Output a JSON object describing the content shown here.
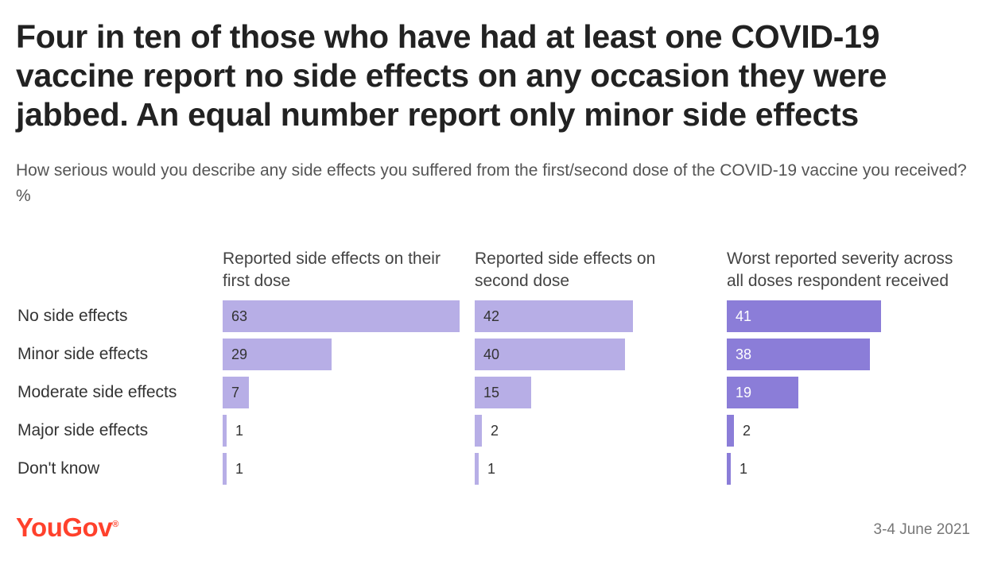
{
  "title": "Four in ten of those who have had at least one COVID-19 vaccine report no side effects on any occasion they were jabbed. An equal number report only minor side effects",
  "subtitle": "How serious would you describe any side effects you suffered from the first/second dose of the COVID-19 vaccine you received? %",
  "chart_data": {
    "type": "bar",
    "orientation": "horizontal",
    "categories": [
      "No side effects",
      "Minor side effects",
      "Moderate side effects",
      "Major side effects",
      "Don't know"
    ],
    "series": [
      {
        "name": "Reported side effects on their first dose",
        "values": [
          63,
          29,
          7,
          1,
          1
        ],
        "color": "#b7aee6"
      },
      {
        "name": "Reported side effects on second dose",
        "values": [
          42,
          40,
          15,
          2,
          1
        ],
        "color": "#b7aee6"
      },
      {
        "name": "Worst reported severity across all doses respondent received",
        "values": [
          41,
          38,
          19,
          2,
          1
        ],
        "color": "#8b7dd8"
      }
    ],
    "xlim": [
      0,
      63
    ],
    "grid": false,
    "legend": "none",
    "data_labels": true
  },
  "footer": {
    "brand": "YouGov",
    "brand_color": "#ff412c",
    "date": "3-4 June 2021"
  }
}
